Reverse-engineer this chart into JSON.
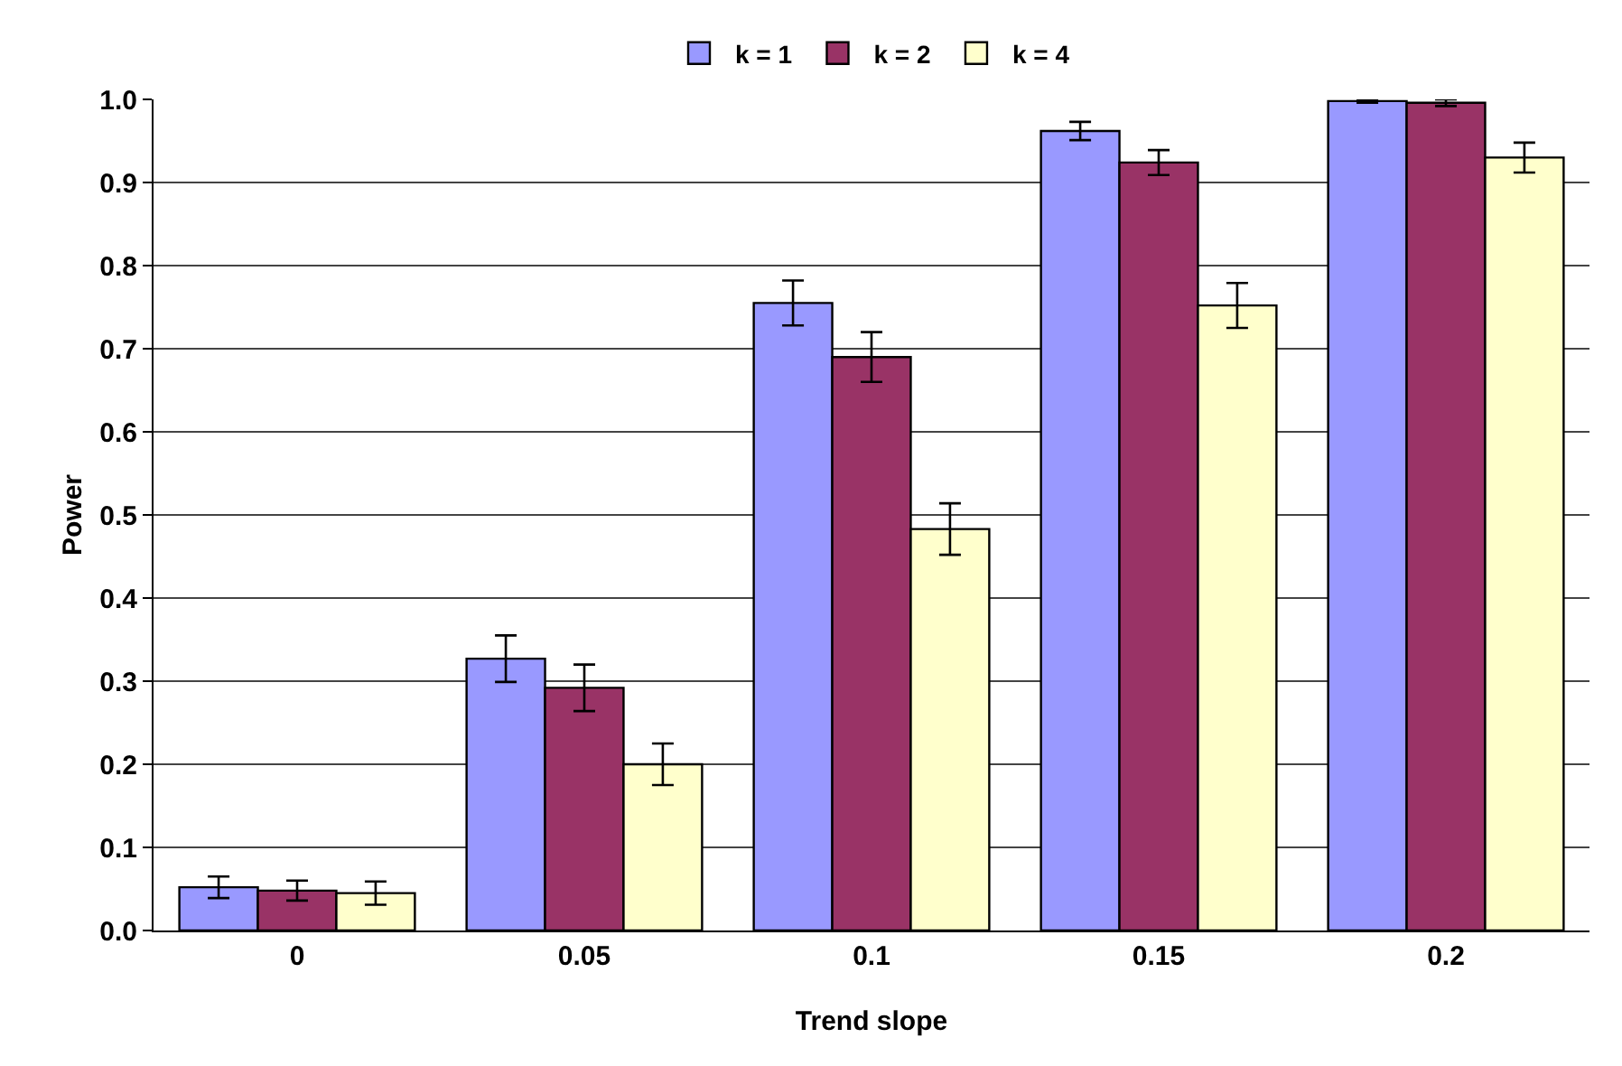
{
  "chart_data": {
    "type": "bar",
    "xlabel": "Trend slope",
    "ylabel": "Power",
    "categories": [
      "0",
      "0.05",
      "0.1",
      "0.15",
      "0.2"
    ],
    "series": [
      {
        "name": "k = 1",
        "color": "#9999ff",
        "values": [
          0.052,
          0.327,
          0.755,
          0.962,
          0.998
        ],
        "errors": [
          0.013,
          0.028,
          0.027,
          0.011,
          0.002
        ]
      },
      {
        "name": "k = 2",
        "color": "#993366",
        "values": [
          0.048,
          0.292,
          0.69,
          0.924,
          0.996
        ],
        "errors": [
          0.012,
          0.028,
          0.03,
          0.015,
          0.004
        ]
      },
      {
        "name": "k = 4",
        "color": "#ffffcc",
        "values": [
          0.045,
          0.2,
          0.483,
          0.752,
          0.93
        ],
        "errors": [
          0.014,
          0.025,
          0.031,
          0.027,
          0.018
        ]
      }
    ],
    "ylim": [
      0,
      1
    ],
    "yticks": [
      {
        "value": 0,
        "label": "0.0"
      },
      {
        "value": 0.1,
        "label": "0.1"
      },
      {
        "value": 0.2,
        "label": "0.2"
      },
      {
        "value": 0.3,
        "label": "0.3"
      },
      {
        "value": 0.4,
        "label": "0.4"
      },
      {
        "value": 0.5,
        "label": "0.5"
      },
      {
        "value": 0.6,
        "label": "0.6"
      },
      {
        "value": 0.7,
        "label": "0.7"
      },
      {
        "value": 0.8,
        "label": "0.8"
      },
      {
        "value": 0.9,
        "label": "0.9"
      },
      {
        "value": 1,
        "label": "1.0"
      }
    ],
    "grid": "y",
    "legend": "top"
  }
}
